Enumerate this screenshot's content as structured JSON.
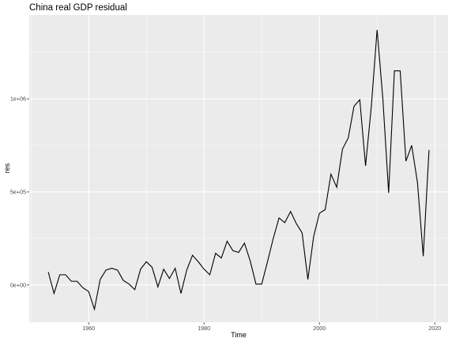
{
  "chart_data": {
    "type": "line",
    "title": "China real GDP residual",
    "subtitle": "",
    "xlabel": "Time",
    "ylabel": "res",
    "xlim": [
      1949.7,
      2022.3
    ],
    "ylim": [
      -200000,
      1450000
    ],
    "x_ticks": [
      1960,
      1980,
      2000,
      2020
    ],
    "x_tick_labels": [
      "1960",
      "1980",
      "2000",
      "2020"
    ],
    "y_ticks": [
      0,
      500000,
      1000000
    ],
    "y_tick_labels": [
      "0e+00",
      "5e+05",
      "1e+06"
    ],
    "grid": true,
    "legend": "none",
    "colors": {
      "panel_background": "#ebebeb",
      "grid_major": "#ffffff",
      "line": "#000000",
      "tick": "#333333"
    },
    "series": [
      {
        "x": [
          1953,
          1954,
          1955,
          1956,
          1957,
          1958,
          1959,
          1960,
          1961,
          1962,
          1963,
          1964,
          1965,
          1966,
          1967,
          1968,
          1969,
          1970,
          1971,
          1972,
          1973,
          1974,
          1975,
          1976,
          1977,
          1978,
          1979,
          1980,
          1981,
          1982,
          1983,
          1984,
          1985,
          1986,
          1987,
          1988,
          1989,
          1990,
          1991,
          1992,
          1993,
          1994,
          1995,
          1996,
          1997,
          1998,
          1999,
          2000,
          2001,
          2002,
          2003,
          2004,
          2005,
          2006,
          2007,
          2008,
          2009,
          2010,
          2011,
          2012,
          2013,
          2014,
          2015,
          2016,
          2017,
          2018,
          2019
        ],
        "values": [
          70000,
          -45000,
          55000,
          55000,
          20000,
          20000,
          -15000,
          -35000,
          -130000,
          30000,
          80000,
          90000,
          80000,
          25000,
          5000,
          -25000,
          85000,
          125000,
          95000,
          -10000,
          85000,
          35000,
          90000,
          -45000,
          80000,
          160000,
          125000,
          85000,
          55000,
          170000,
          145000,
          235000,
          185000,
          175000,
          225000,
          130000,
          5000,
          5000,
          125000,
          250000,
          360000,
          335000,
          395000,
          330000,
          280000,
          30000,
          260000,
          385000,
          405000,
          595000,
          525000,
          730000,
          790000,
          960000,
          995000,
          640000,
          960000,
          1370000,
          1000000,
          495000,
          1150000,
          1150000,
          665000,
          750000,
          550000,
          155000,
          725000
        ]
      }
    ]
  }
}
